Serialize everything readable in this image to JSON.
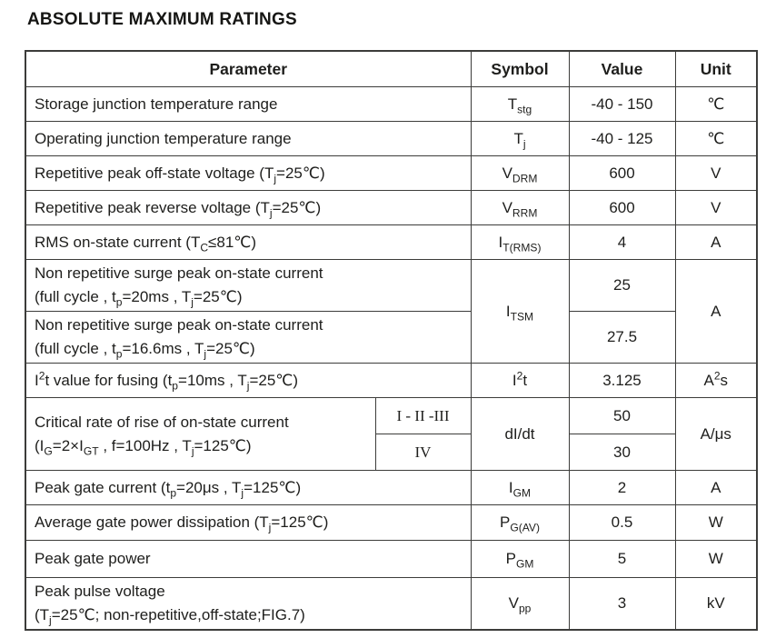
{
  "page": {
    "title": "ABSOLUTE MAXIMUM RATINGS"
  },
  "colors": {
    "background": "#ffffff",
    "border": "#3c3c3a",
    "text": "#1e1e1c"
  },
  "table": {
    "headers": {
      "parameter": "Parameter",
      "symbol": "Symbol",
      "value": "Value",
      "unit": "Unit"
    },
    "rows": {
      "storage": {
        "parameter": "Storage junction temperature range",
        "symbol": "T<sub>stg</sub>",
        "value": "-40 - 150",
        "unit": "℃"
      },
      "operating": {
        "parameter": "Operating junction temperature range",
        "symbol": "T<sub>j</sub>",
        "value": "-40 - 125",
        "unit": "℃"
      },
      "vdrm": {
        "parameter": "Repetitive peak off-state voltage (T<sub>j</sub>=25℃)",
        "symbol": "V<sub>DRM</sub>",
        "value": "600",
        "unit": "V"
      },
      "vrrm": {
        "parameter": "Repetitive peak reverse voltage (T<sub>j</sub>=25℃)",
        "symbol": "V<sub>RRM</sub>",
        "value": "600",
        "unit": "V"
      },
      "itrms": {
        "parameter": "RMS on-state current (T<sub>C</sub>≤81℃)",
        "symbol": "I<sub>T(RMS)</sub>",
        "value": "4",
        "unit": "A"
      },
      "itsm": {
        "parameter_20ms": "Non repetitive surge peak on-state current<br>(full cycle , t<sub>p</sub>=20ms , T<sub>j</sub>=25℃)",
        "parameter_16_6ms": "Non repetitive surge peak on-state current<br>(full cycle , t<sub>p</sub>=16.6ms , T<sub>j</sub>=25℃)",
        "symbol": "I<sub>TSM</sub>",
        "value_20ms": "25",
        "value_16_6ms": "27.5",
        "unit": "A"
      },
      "i2t": {
        "parameter": "I<sup>2</sup>t value for fusing (t<sub>p</sub>=10ms , T<sub>j</sub>=25℃)",
        "symbol": "I<sup>2</sup>t",
        "value": "3.125",
        "unit": "A<sup>2</sup>s"
      },
      "didt": {
        "parameter": "Critical rate of rise of on-state current<br>(I<sub>G</sub>=2×I<sub>GT</sub> , f=100Hz , T<sub>j</sub>=125℃)",
        "class_group_a": "I - II -III",
        "class_group_b": "IV",
        "symbol": "dI/dt",
        "value_class_a": "50",
        "value_class_b": "30",
        "unit": "A/μs"
      },
      "igm": {
        "parameter": "Peak gate current (t<sub>p</sub>=20μs , T<sub>j</sub>=125℃)",
        "symbol": "I<sub>GM</sub>",
        "value": "2",
        "unit": "A"
      },
      "pgav": {
        "parameter": "Average gate power dissipation (T<sub>j</sub>=125℃)",
        "symbol": "P<sub>G(AV)</sub>",
        "value": "0.5",
        "unit": "W"
      },
      "pgm": {
        "parameter": "Peak gate power",
        "symbol": "P<sub>GM</sub>",
        "value": "5",
        "unit": "W"
      },
      "vpp": {
        "parameter": "Peak pulse voltage<br>(T<sub>j</sub>=25℃; non-repetitive,off-state;FIG.7)",
        "symbol": "V<sub>pp</sub>",
        "value": "3",
        "unit": "kV"
      }
    }
  }
}
